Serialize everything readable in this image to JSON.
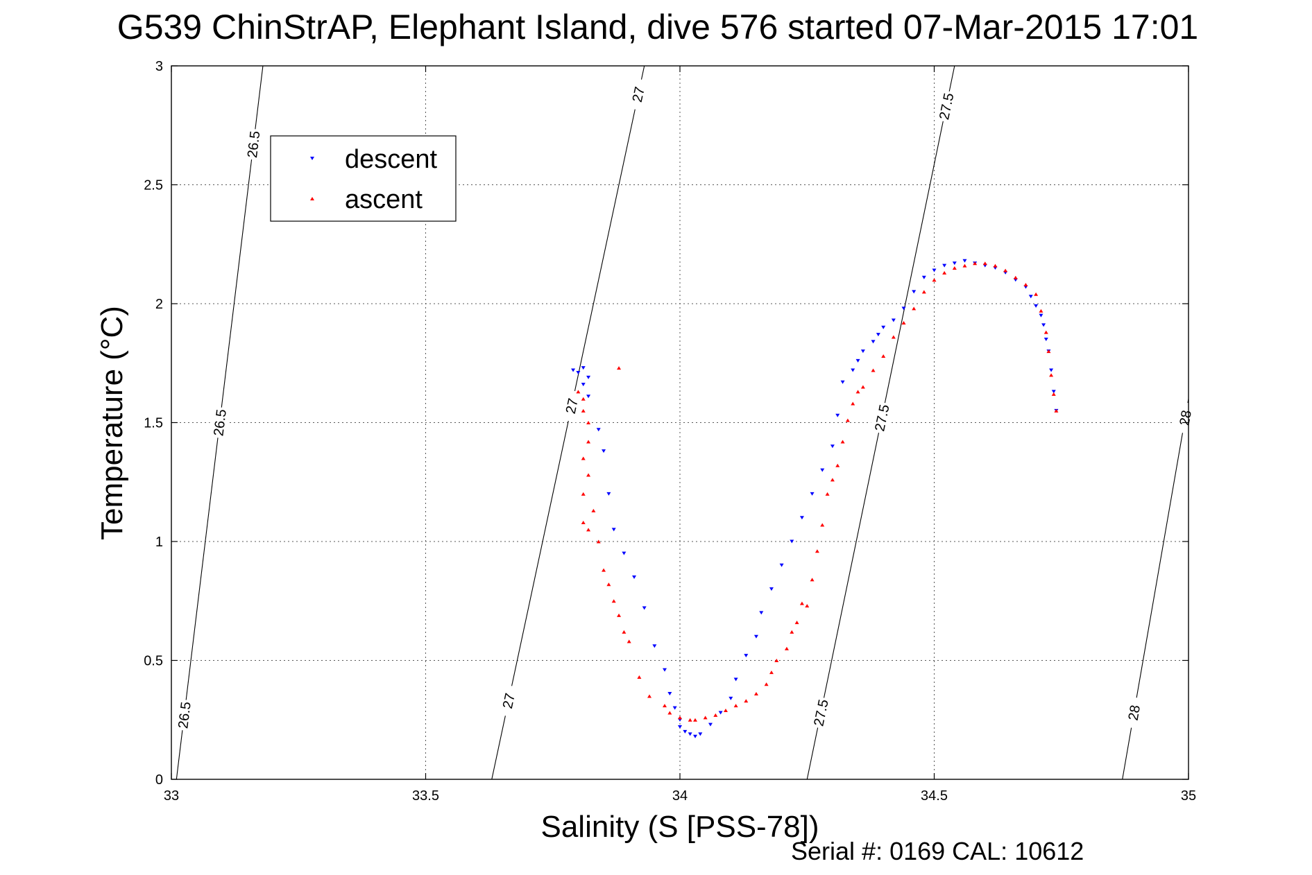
{
  "chart_data": {
    "type": "scatter",
    "title": "G539 ChinStrAP, Elephant Island, dive 576 started 07-Mar-2015 17:01",
    "xlabel": "Salinity (S [PSS-78])",
    "ylabel": "Temperature (°C)",
    "footer": "Serial #: 0169 CAL: 10612",
    "xlim": [
      33,
      35
    ],
    "ylim": [
      0,
      3
    ],
    "x_ticks": [
      33,
      33.5,
      34,
      34.5,
      35
    ],
    "x_tick_labels": [
      "33",
      "33.5",
      "34",
      "34.5",
      "35"
    ],
    "y_ticks": [
      0,
      0.5,
      1,
      1.5,
      2,
      2.5,
      3
    ],
    "y_tick_labels": [
      "0",
      "0.5",
      "1",
      "1.5",
      "2",
      "2.5",
      "3"
    ],
    "grid": true,
    "legend_position": "top-left",
    "isopycnals": [
      {
        "label": "26.5",
        "points": [
          [
            33.01,
            0
          ],
          [
            33.18,
            3
          ]
        ],
        "label_at": [
          0.27,
          1.5,
          2.67
        ]
      },
      {
        "label": "27",
        "points": [
          [
            33.63,
            0
          ],
          [
            33.93,
            3
          ]
        ],
        "label_at": [
          0.33,
          1.57,
          2.88
        ]
      },
      {
        "label": "27.5",
        "points": [
          [
            34.25,
            0
          ],
          [
            34.54,
            3
          ]
        ],
        "label_at": [
          0.28,
          1.52,
          2.83
        ]
      },
      {
        "label": "28",
        "points": [
          [
            34.87,
            0
          ],
          [
            35.0,
            1.6
          ]
        ],
        "label_at": [
          0.28,
          1.52
        ]
      }
    ],
    "series": [
      {
        "name": "descent",
        "color": "#0000ff",
        "marker": "triangle-down",
        "x": [
          33.79,
          33.8,
          33.81,
          33.82,
          33.81,
          33.82,
          33.84,
          33.85,
          33.86,
          33.87,
          33.89,
          33.91,
          33.93,
          33.95,
          33.97,
          33.98,
          33.99,
          34.0,
          34.0,
          34.01,
          34.02,
          34.03,
          34.04,
          34.06,
          34.08,
          34.1,
          34.11,
          34.13,
          34.15,
          34.16,
          34.18,
          34.2,
          34.22,
          34.24,
          34.26,
          34.28,
          34.3,
          34.31,
          34.32,
          34.34,
          34.35,
          34.36,
          34.38,
          34.39,
          34.4,
          34.42,
          34.44,
          34.46,
          34.48,
          34.5,
          34.52,
          34.54,
          34.56,
          34.58,
          34.6,
          34.62,
          34.64,
          34.66,
          34.68,
          34.69,
          34.7,
          34.71,
          34.715,
          34.72,
          34.725,
          34.73,
          34.735,
          34.74
        ],
        "y": [
          1.72,
          1.71,
          1.73,
          1.69,
          1.66,
          1.61,
          1.47,
          1.38,
          1.2,
          1.05,
          0.95,
          0.85,
          0.72,
          0.56,
          0.46,
          0.36,
          0.3,
          0.25,
          0.22,
          0.2,
          0.19,
          0.18,
          0.19,
          0.23,
          0.28,
          0.34,
          0.42,
          0.52,
          0.6,
          0.7,
          0.8,
          0.9,
          1.0,
          1.1,
          1.2,
          1.3,
          1.4,
          1.53,
          1.67,
          1.72,
          1.76,
          1.8,
          1.84,
          1.87,
          1.9,
          1.93,
          1.98,
          2.05,
          2.11,
          2.14,
          2.16,
          2.17,
          2.18,
          2.17,
          2.16,
          2.15,
          2.13,
          2.1,
          2.07,
          2.03,
          1.99,
          1.95,
          1.91,
          1.85,
          1.8,
          1.72,
          1.63,
          1.55
        ]
      },
      {
        "name": "ascent",
        "color": "#ff0000",
        "marker": "triangle-up",
        "x": [
          33.88,
          33.8,
          33.81,
          33.81,
          33.82,
          33.82,
          33.81,
          33.82,
          33.81,
          33.83,
          33.81,
          33.82,
          33.84,
          33.85,
          33.86,
          33.87,
          33.88,
          33.89,
          33.9,
          33.92,
          33.94,
          33.97,
          33.98,
          34.0,
          34.02,
          34.03,
          34.05,
          34.07,
          34.09,
          34.11,
          34.13,
          34.15,
          34.17,
          34.18,
          34.19,
          34.21,
          34.22,
          34.23,
          34.24,
          34.25,
          34.26,
          34.27,
          34.28,
          34.29,
          34.3,
          34.31,
          34.32,
          34.33,
          34.34,
          34.35,
          34.36,
          34.38,
          34.4,
          34.42,
          34.44,
          34.46,
          34.48,
          34.5,
          34.52,
          34.54,
          34.56,
          34.58,
          34.6,
          34.62,
          34.64,
          34.66,
          34.68,
          34.7,
          34.71,
          34.72,
          34.725,
          34.73,
          34.735,
          34.74
        ],
        "y": [
          1.73,
          1.63,
          1.6,
          1.55,
          1.5,
          1.42,
          1.35,
          1.28,
          1.2,
          1.13,
          1.08,
          1.05,
          1.0,
          0.88,
          0.82,
          0.75,
          0.69,
          0.62,
          0.58,
          0.43,
          0.35,
          0.31,
          0.28,
          0.26,
          0.25,
          0.25,
          0.26,
          0.27,
          0.29,
          0.31,
          0.33,
          0.36,
          0.4,
          0.45,
          0.5,
          0.55,
          0.62,
          0.66,
          0.74,
          0.73,
          0.84,
          0.96,
          1.07,
          1.2,
          1.26,
          1.32,
          1.42,
          1.51,
          1.58,
          1.63,
          1.65,
          1.72,
          1.78,
          1.86,
          1.92,
          1.98,
          2.05,
          2.1,
          2.13,
          2.15,
          2.16,
          2.17,
          2.17,
          2.16,
          2.14,
          2.11,
          2.08,
          2.04,
          1.97,
          1.88,
          1.8,
          1.7,
          1.62,
          1.55
        ]
      }
    ]
  }
}
